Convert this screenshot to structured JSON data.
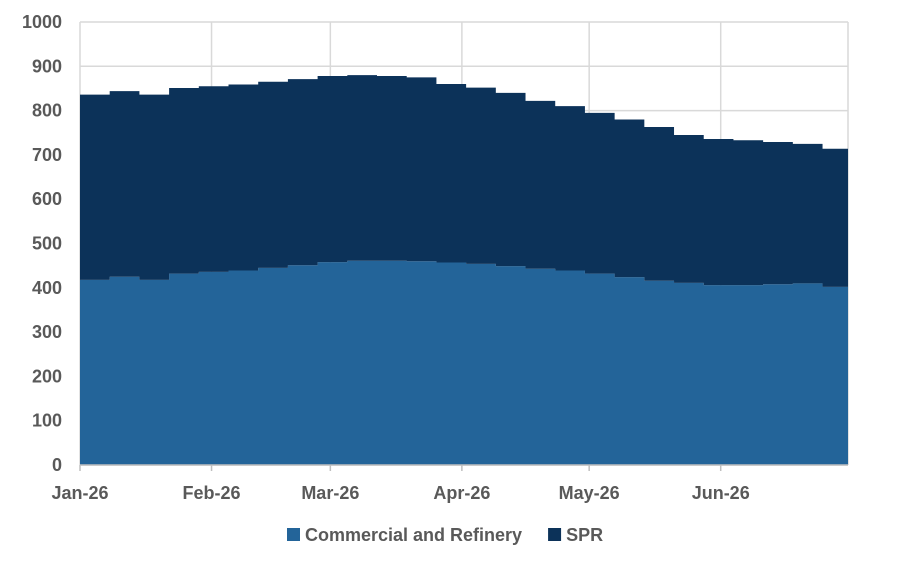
{
  "chart_data": {
    "type": "area",
    "stacked": true,
    "step": true,
    "ylim": [
      0,
      1000
    ],
    "y_ticks": [
      "0",
      "100",
      "200",
      "300",
      "400",
      "500",
      "600",
      "700",
      "800",
      "900",
      "1000"
    ],
    "x_range": [
      "2026-01-01",
      "2026-07-01"
    ],
    "x_ticks": [
      {
        "date": "2026-01-01",
        "label": "Jan-26"
      },
      {
        "date": "2026-02-01",
        "label": "Feb-26"
      },
      {
        "date": "2026-03-01",
        "label": "Mar-26"
      },
      {
        "date": "2026-04-01",
        "label": "Apr-26"
      },
      {
        "date": "2026-05-01",
        "label": "May-26"
      },
      {
        "date": "2026-06-01",
        "label": "Jun-26"
      }
    ],
    "x": [
      "2026-01-01",
      "2026-01-08",
      "2026-01-15",
      "2026-01-22",
      "2026-01-29",
      "2026-02-05",
      "2026-02-12",
      "2026-02-19",
      "2026-02-26",
      "2026-03-05",
      "2026-03-12",
      "2026-03-19",
      "2026-03-26",
      "2026-04-02",
      "2026-04-09",
      "2026-04-16",
      "2026-04-23",
      "2026-04-30",
      "2026-05-07",
      "2026-05-14",
      "2026-05-21",
      "2026-05-28",
      "2026-06-04",
      "2026-06-11",
      "2026-06-18",
      "2026-06-25"
    ],
    "series": [
      {
        "name": "Commercial and Refinery",
        "color": "#236499",
        "values": [
          418,
          425,
          418,
          432,
          436,
          439,
          445,
          451,
          458,
          461,
          461,
          460,
          457,
          454,
          449,
          443,
          439,
          432,
          424,
          416,
          411,
          406,
          406,
          408,
          410,
          402
        ]
      },
      {
        "name": "SPR",
        "color": "#0c3259",
        "values": [
          418,
          419,
          418,
          419,
          419,
          420,
          420,
          420,
          420,
          419,
          417,
          415,
          403,
          398,
          391,
          379,
          371,
          363,
          356,
          347,
          334,
          330,
          327,
          321,
          315,
          312
        ]
      }
    ],
    "grid": true,
    "legend_position": "bottom"
  }
}
